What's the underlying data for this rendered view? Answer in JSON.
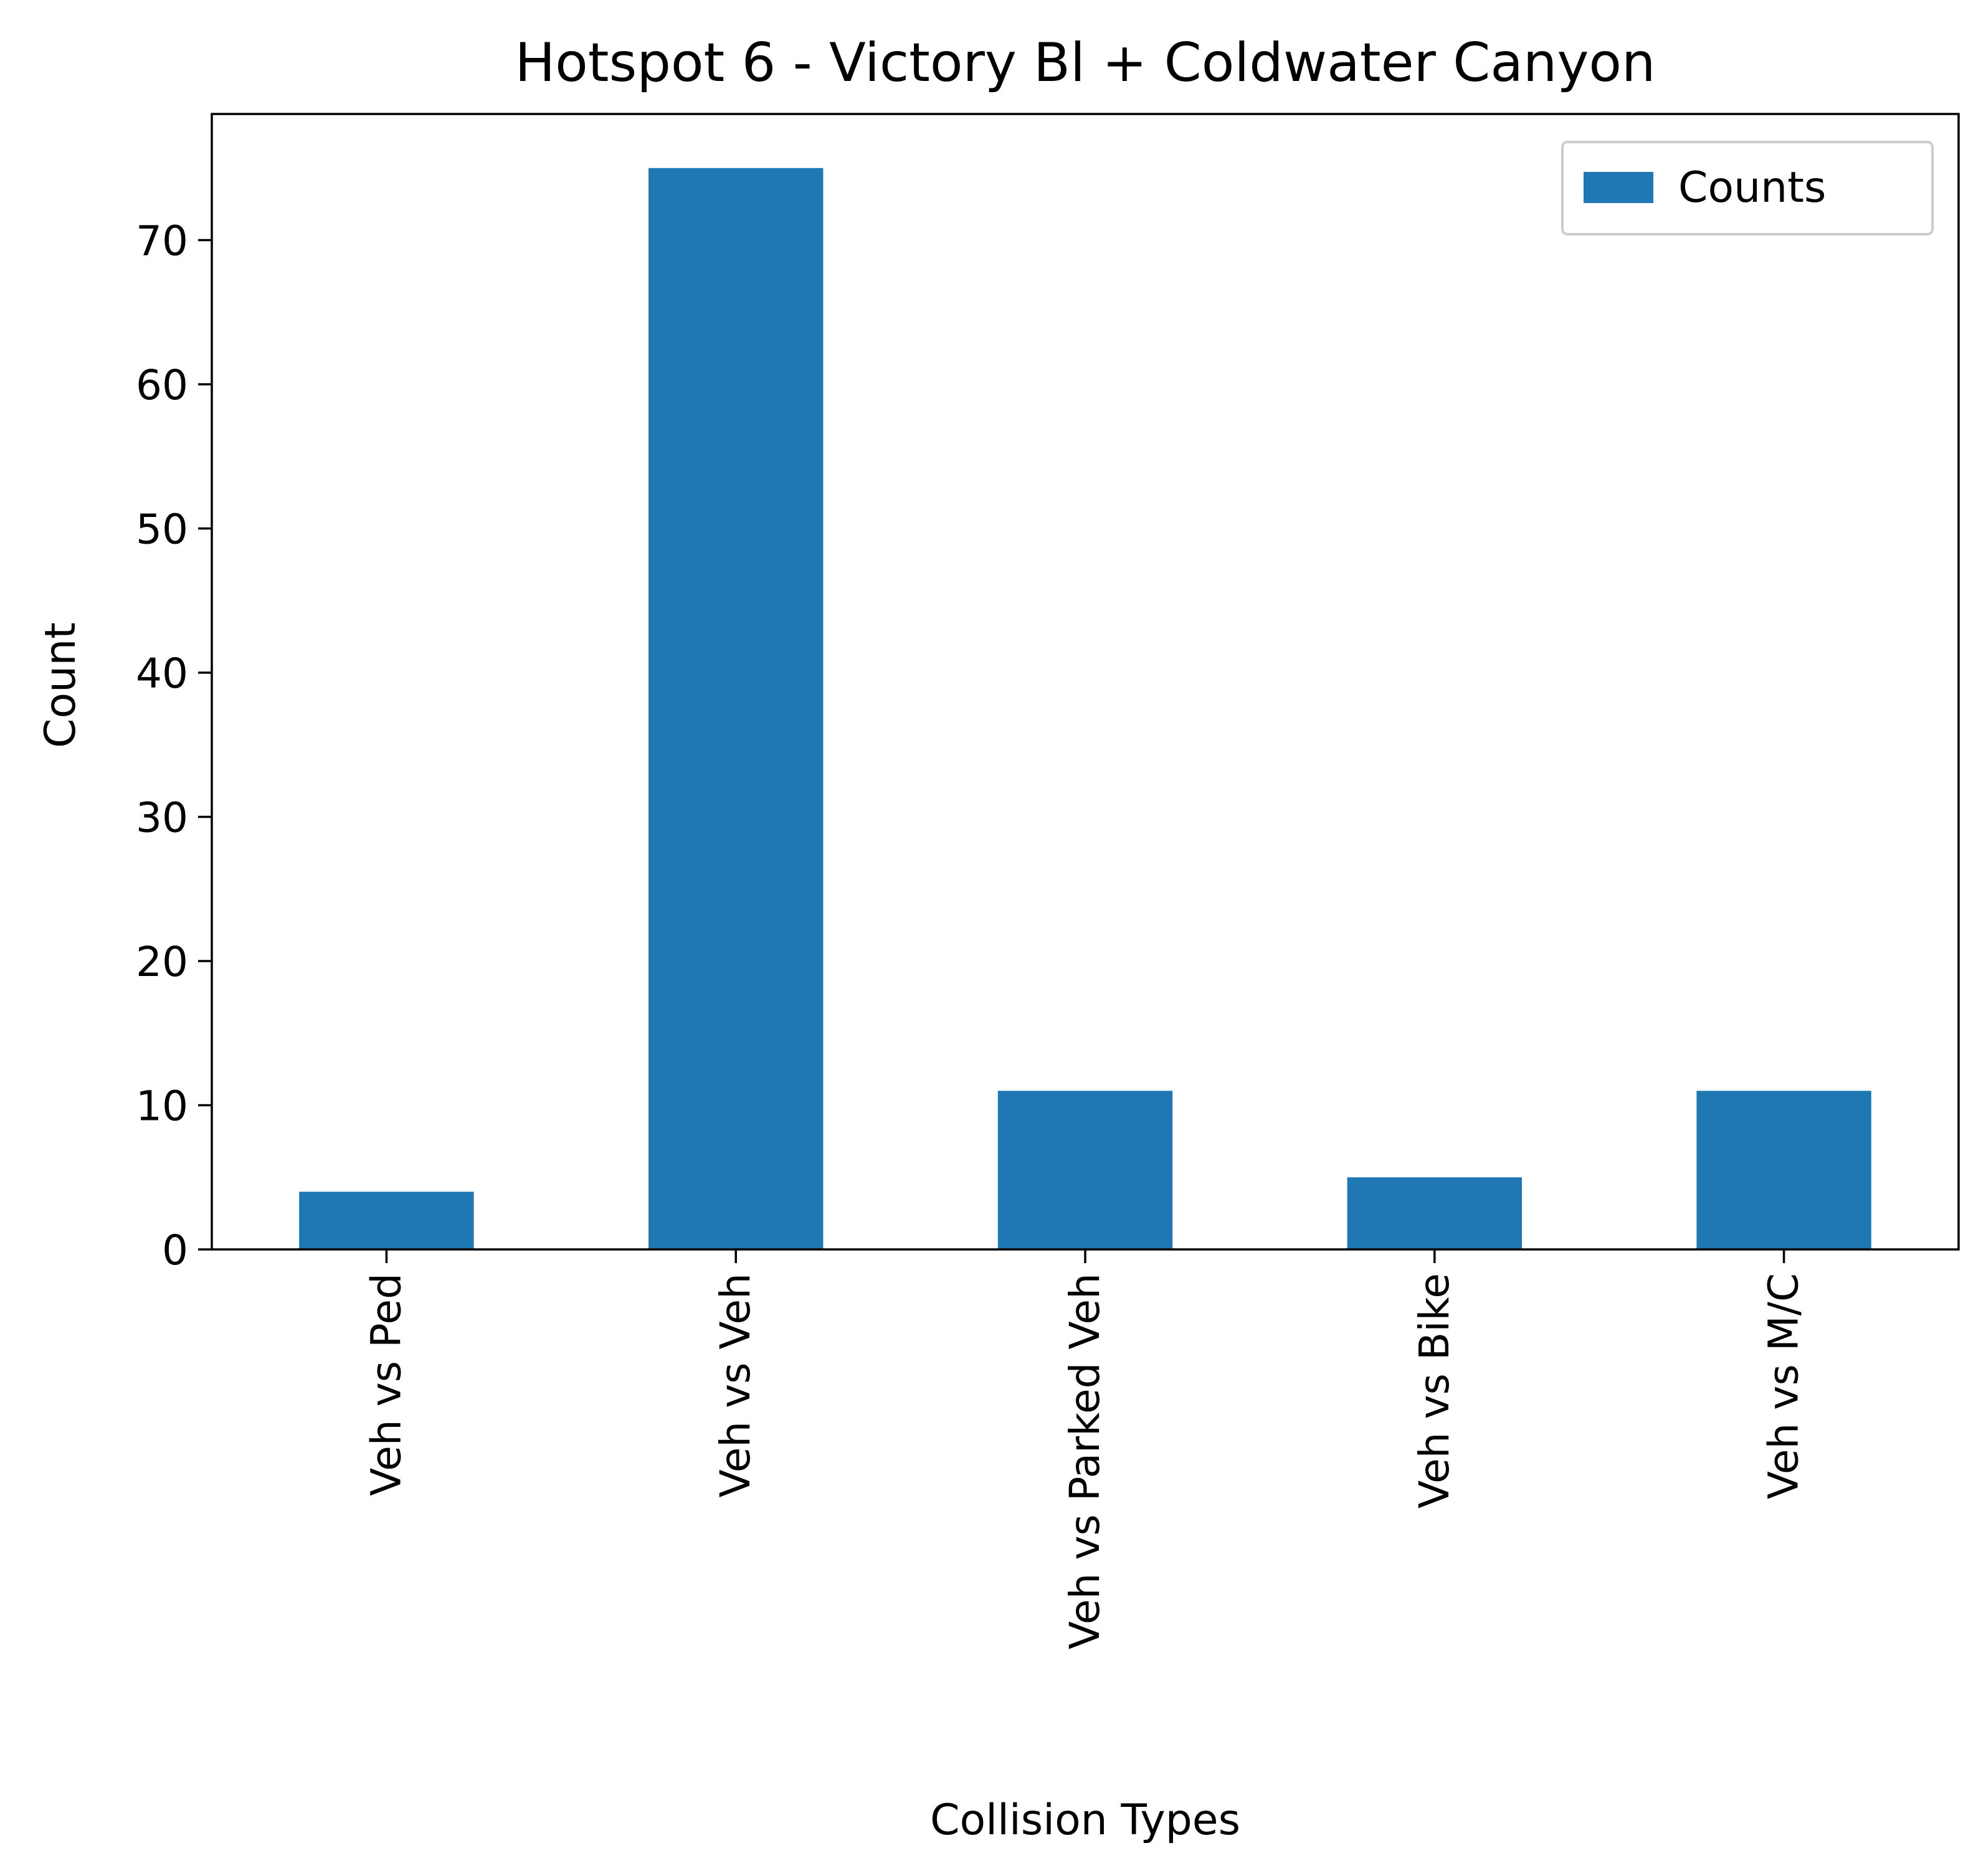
{
  "chart_data": {
    "type": "bar",
    "title": "Hotspot 6 - Victory Bl + Coldwater Canyon",
    "xlabel": "Collision Types",
    "ylabel": "Count",
    "categories": [
      "Veh vs Ped",
      "Veh vs Veh",
      "Veh vs Parked Veh",
      "Veh vs Bike",
      "Veh vs M/C"
    ],
    "series": [
      {
        "name": "Counts",
        "values": [
          4,
          75,
          11,
          5,
          11
        ],
        "color": "#1f77b4"
      }
    ],
    "ylim": [
      0,
      78.75
    ],
    "yticks": [
      0,
      10,
      20,
      30,
      40,
      50,
      60,
      70
    ],
    "grid": false,
    "legend": "top-right"
  }
}
